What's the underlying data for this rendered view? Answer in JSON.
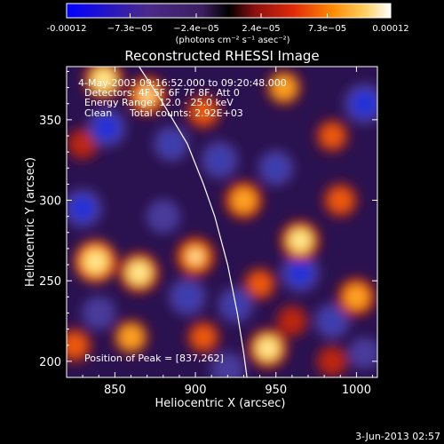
{
  "chart_data": {
    "type": "heatmap",
    "title": "Reconstructed RHESSI Image",
    "xlabel": "Heliocentric X (arcsec)",
    "ylabel": "Heliocentric Y (arcsec)",
    "xlim": [
      820,
      1013
    ],
    "ylim": [
      190,
      383
    ],
    "x_ticks": [
      "850",
      "900",
      "950",
      "1000"
    ],
    "y_ticks": [
      "200",
      "250",
      "300",
      "350"
    ],
    "x_tick_values": [
      850,
      900,
      950,
      1000
    ],
    "y_tick_values": [
      200,
      250,
      300,
      350
    ],
    "grid": false,
    "colorbar": {
      "ticks": [
        "-0.00012",
        "−7.3e−05",
        "−2.4e−05",
        "2.4e−05",
        "7.3e−05",
        "0.00012"
      ],
      "tick_values": [
        -0.00012,
        -7.3e-05,
        -2.4e-05,
        2.4e-05,
        7.3e-05,
        0.00012
      ],
      "range": [
        -0.00012,
        0.00012
      ],
      "unit_label": "(photons cm⁻² s⁻¹ asec⁻²)"
    },
    "annotations": {
      "time": "4-May-2003 09:16:52.000 to 09:20:48.000",
      "detectors": "Detectors: 4F 5F 6F 7F 8F, Att 0",
      "energy": "Energy Range: 12.0 - 25.0 keV",
      "method": "Clean",
      "counts": "Total counts: 2.92E+03",
      "peak": "Position of Peak = [837,262]"
    },
    "peak_position": [
      837,
      262
    ],
    "limb_curve": [
      [
        865,
        383
      ],
      [
        880,
        360
      ],
      [
        895,
        335
      ],
      [
        905,
        310
      ],
      [
        912,
        290
      ],
      [
        920,
        260
      ],
      [
        926,
        230
      ],
      [
        930,
        205
      ],
      [
        932,
        190
      ]
    ],
    "blobs": [
      {
        "x": 843,
        "y": 375,
        "v": 0.9
      },
      {
        "x": 870,
        "y": 365,
        "v": 0.85
      },
      {
        "x": 830,
        "y": 335,
        "v": 0.5
      },
      {
        "x": 905,
        "y": 355,
        "v": 0.7
      },
      {
        "x": 955,
        "y": 370,
        "v": 0.75
      },
      {
        "x": 985,
        "y": 340,
        "v": 0.6
      },
      {
        "x": 930,
        "y": 300,
        "v": 0.8
      },
      {
        "x": 965,
        "y": 275,
        "v": 0.9
      },
      {
        "x": 990,
        "y": 300,
        "v": 0.7
      },
      {
        "x": 865,
        "y": 255,
        "v": 0.95
      },
      {
        "x": 900,
        "y": 265,
        "v": 0.85
      },
      {
        "x": 838,
        "y": 262,
        "v": 1.0
      },
      {
        "x": 940,
        "y": 248,
        "v": 0.6
      },
      {
        "x": 1000,
        "y": 240,
        "v": 0.8
      },
      {
        "x": 860,
        "y": 215,
        "v": 0.75
      },
      {
        "x": 905,
        "y": 215,
        "v": 0.6
      },
      {
        "x": 945,
        "y": 208,
        "v": 0.9
      },
      {
        "x": 985,
        "y": 200,
        "v": 0.5
      },
      {
        "x": 825,
        "y": 210,
        "v": 0.7
      },
      {
        "x": 960,
        "y": 225,
        "v": 0.5
      },
      {
        "x": 845,
        "y": 345,
        "v": -0.8
      },
      {
        "x": 885,
        "y": 335,
        "v": -0.6
      },
      {
        "x": 830,
        "y": 295,
        "v": -0.8
      },
      {
        "x": 915,
        "y": 325,
        "v": -0.7
      },
      {
        "x": 950,
        "y": 320,
        "v": -0.6
      },
      {
        "x": 1005,
        "y": 360,
        "v": -0.9
      },
      {
        "x": 895,
        "y": 240,
        "v": -0.7
      },
      {
        "x": 925,
        "y": 235,
        "v": -0.6
      },
      {
        "x": 965,
        "y": 255,
        "v": -0.8
      },
      {
        "x": 880,
        "y": 290,
        "v": -0.5
      },
      {
        "x": 985,
        "y": 225,
        "v": -0.6
      },
      {
        "x": 840,
        "y": 230,
        "v": -0.5
      },
      {
        "x": 1005,
        "y": 205,
        "v": -0.4
      },
      {
        "x": 920,
        "y": 195,
        "v": -0.5
      }
    ]
  },
  "footer": {
    "timestamp": "3-Jun-2013 02:57"
  }
}
